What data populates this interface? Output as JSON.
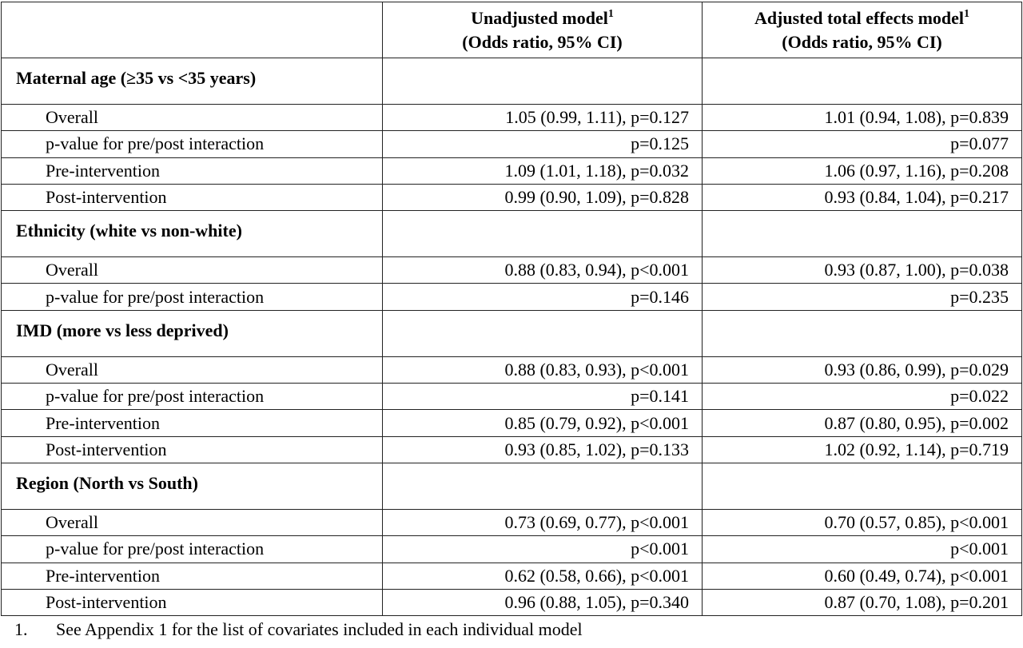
{
  "header": {
    "columns": [
      {
        "title": "Unadjusted model",
        "sup": "1",
        "subtitle": "(Odds ratio, 95% CI)"
      },
      {
        "title": "Adjusted total effects model",
        "sup": "1",
        "subtitle": "(Odds ratio, 95% CI)"
      }
    ]
  },
  "sections": [
    {
      "title": "Maternal age (≥35 vs <35 years)",
      "rows": [
        {
          "label": "Overall",
          "unadjusted": "1.05 (0.99, 1.11), p=0.127",
          "adjusted": "1.01 (0.94, 1.08), p=0.839"
        },
        {
          "label": "p-value for pre/post interaction",
          "unadjusted": "p=0.125",
          "adjusted": "p=0.077"
        },
        {
          "label": "Pre-intervention",
          "unadjusted": "1.09 (1.01, 1.18), p=0.032",
          "adjusted": "1.06 (0.97, 1.16), p=0.208"
        },
        {
          "label": "Post-intervention",
          "unadjusted": "0.99 (0.90, 1.09), p=0.828",
          "adjusted": "0.93 (0.84, 1.04), p=0.217"
        }
      ]
    },
    {
      "title": "Ethnicity (white vs non-white)",
      "rows": [
        {
          "label": "Overall",
          "unadjusted": "0.88 (0.83, 0.94), p<0.001",
          "adjusted": "0.93 (0.87, 1.00), p=0.038"
        },
        {
          "label": "p-value for pre/post interaction",
          "unadjusted": "p=0.146",
          "adjusted": "p=0.235"
        }
      ]
    },
    {
      "title": "IMD (more vs less deprived)",
      "rows": [
        {
          "label": "Overall",
          "unadjusted": "0.88 (0.83, 0.93), p<0.001",
          "adjusted": "0.93 (0.86, 0.99), p=0.029"
        },
        {
          "label": "p-value for pre/post interaction",
          "unadjusted": "p=0.141",
          "adjusted": "p=0.022"
        },
        {
          "label": "Pre-intervention",
          "unadjusted": "0.85 (0.79, 0.92), p<0.001",
          "adjusted": "0.87 (0.80, 0.95), p=0.002"
        },
        {
          "label": "Post-intervention",
          "unadjusted": "0.93 (0.85, 1.02), p=0.133",
          "adjusted": "1.02 (0.92, 1.14), p=0.719"
        }
      ]
    },
    {
      "title": "Region (North vs South)",
      "rows": [
        {
          "label": "Overall",
          "unadjusted": "0.73 (0.69, 0.77), p<0.001",
          "adjusted": "0.70 (0.57, 0.85), p<0.001"
        },
        {
          "label": "p-value for pre/post interaction",
          "unadjusted": "p<0.001",
          "adjusted": "p<0.001"
        },
        {
          "label": "Pre-intervention",
          "unadjusted": "0.62 (0.58, 0.66), p<0.001",
          "adjusted": "0.60 (0.49, 0.74), p<0.001"
        },
        {
          "label": "Post-intervention",
          "unadjusted": "0.96 (0.88, 1.05), p=0.340",
          "adjusted": "0.87 (0.70, 1.08), p=0.201"
        }
      ]
    }
  ],
  "footnote": {
    "number": "1.",
    "text": "See Appendix 1 for the list of covariates included in each individual model"
  }
}
